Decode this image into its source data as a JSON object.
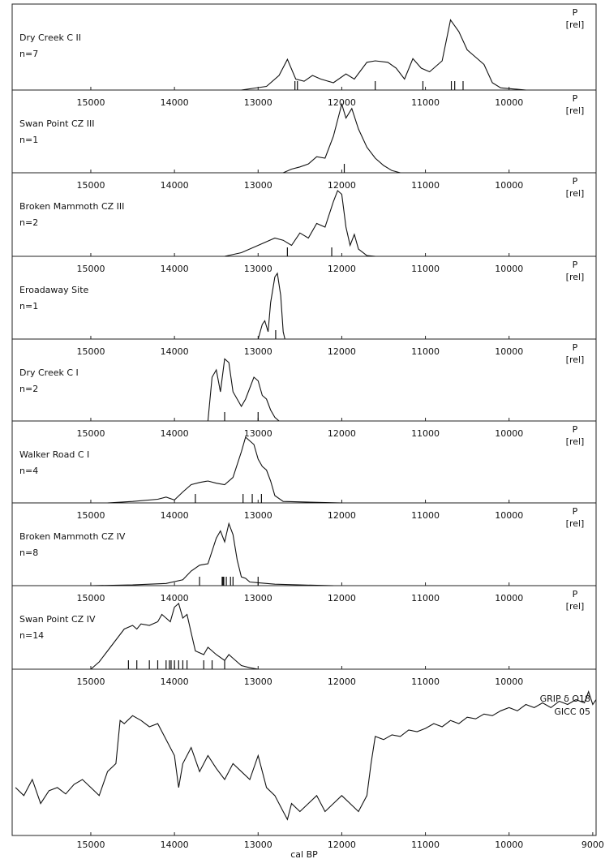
{
  "chart_data": [
    {
      "type": "line",
      "title": "Dry Creek C II",
      "subtitle": "n=7",
      "ylabel_lines": [
        "P",
        "[rel]"
      ],
      "x": [
        13200,
        12900,
        12750,
        12650,
        12550,
        12450,
        12350,
        12250,
        12100,
        11950,
        11850,
        11700,
        11600,
        11450,
        11350,
        11250,
        11150,
        11050,
        10950,
        10900,
        10800,
        10700,
        10600,
        10500,
        10400,
        10300,
        10200,
        10100,
        9900,
        9800
      ],
      "values": [
        0,
        0.05,
        0.2,
        0.42,
        0.15,
        0.12,
        0.2,
        0.15,
        0.1,
        0.22,
        0.15,
        0.38,
        0.4,
        0.38,
        0.3,
        0.15,
        0.43,
        0.3,
        0.25,
        0.3,
        0.4,
        0.96,
        0.8,
        0.55,
        0.45,
        0.35,
        0.1,
        0.03,
        0.01,
        0
      ],
      "dates": [
        12560,
        12530,
        11600,
        11030,
        10690,
        10650,
        10550
      ],
      "xlim": [
        15940,
        8960
      ],
      "ylim": [
        0,
        1
      ],
      "xticks": [
        15000,
        14000,
        13000,
        12000,
        11000,
        10000
      ]
    },
    {
      "type": "line",
      "title": "Swan Point CZ III",
      "subtitle": "n=1",
      "ylabel_lines": [
        "P",
        "[rel]"
      ],
      "x": [
        12700,
        12600,
        12500,
        12400,
        12300,
        12200,
        12100,
        12000,
        11950,
        11880,
        11800,
        11700,
        11600,
        11500,
        11400,
        11300
      ],
      "values": [
        0,
        0.05,
        0.08,
        0.12,
        0.22,
        0.2,
        0.5,
        0.94,
        0.75,
        0.88,
        0.6,
        0.35,
        0.2,
        0.1,
        0.03,
        0
      ],
      "dates": [
        11970
      ],
      "xlim": [
        15940,
        8960
      ],
      "ylim": [
        0,
        1
      ],
      "xticks": [
        15000,
        14000,
        13000,
        12000,
        11000,
        10000
      ]
    },
    {
      "type": "line",
      "title": "Broken Mammoth CZ III",
      "subtitle": "n=2",
      "ylabel_lines": [
        "P",
        "[rel]"
      ],
      "x": [
        13400,
        13200,
        13000,
        12800,
        12700,
        12600,
        12500,
        12400,
        12300,
        12200,
        12100,
        12050,
        12000,
        11950,
        11900,
        11850,
        11800,
        11700,
        11600
      ],
      "values": [
        0,
        0.05,
        0.15,
        0.25,
        0.22,
        0.15,
        0.32,
        0.25,
        0.45,
        0.4,
        0.75,
        0.9,
        0.85,
        0.4,
        0.15,
        0.3,
        0.1,
        0.01,
        0
      ],
      "dates": [
        12650,
        12120
      ],
      "xlim": [
        15940,
        8960
      ],
      "ylim": [
        0,
        1
      ],
      "xticks": [
        15000,
        14000,
        13000,
        12000,
        11000,
        10000
      ]
    },
    {
      "type": "line",
      "title": "Eroadaway Site",
      "subtitle": "n=1",
      "ylabel_lines": [
        "P",
        "[rel]"
      ],
      "x": [
        13000,
        12950,
        12920,
        12880,
        12850,
        12800,
        12770,
        12730,
        12700,
        12680
      ],
      "values": [
        0,
        0.2,
        0.25,
        0.1,
        0.5,
        0.85,
        0.9,
        0.6,
        0.1,
        0
      ],
      "dates": [
        12790
      ],
      "xlim": [
        15940,
        8960
      ],
      "ylim": [
        0,
        1
      ],
      "xticks": [
        15000,
        14000,
        13000,
        12000,
        11000,
        10000
      ]
    },
    {
      "type": "line",
      "title": "Dry Creek C I",
      "subtitle": "n=2",
      "ylabel_lines": [
        "P",
        "[rel]"
      ],
      "x": [
        13600,
        13550,
        13500,
        13450,
        13400,
        13350,
        13300,
        13200,
        13150,
        13050,
        13000,
        12950,
        12900,
        12850,
        12800,
        12750
      ],
      "values": [
        0,
        0.6,
        0.7,
        0.4,
        0.85,
        0.8,
        0.4,
        0.2,
        0.3,
        0.6,
        0.55,
        0.35,
        0.3,
        0.15,
        0.05,
        0
      ],
      "dates": [
        13400,
        13000
      ],
      "xlim": [
        15940,
        8960
      ],
      "ylim": [
        0,
        1
      ],
      "xticks": [
        15000,
        14000,
        13000,
        12000,
        11000,
        10000
      ]
    },
    {
      "type": "line",
      "title": "Walker Road C I",
      "subtitle": "n=4",
      "ylabel_lines": [
        "P",
        "[rel]"
      ],
      "x": [
        14800,
        14500,
        14200,
        14100,
        14000,
        13900,
        13800,
        13700,
        13600,
        13500,
        13400,
        13300,
        13200,
        13150,
        13050,
        13000,
        12950,
        12900,
        12850,
        12800,
        12700,
        12000
      ],
      "values": [
        0,
        0.02,
        0.05,
        0.08,
        0.04,
        0.15,
        0.25,
        0.28,
        0.3,
        0.27,
        0.25,
        0.35,
        0.7,
        0.9,
        0.8,
        0.6,
        0.5,
        0.45,
        0.3,
        0.1,
        0.02,
        0
      ],
      "dates": [
        13750,
        13180,
        13070,
        12960
      ],
      "xlim": [
        15940,
        8960
      ],
      "ylim": [
        0,
        1
      ],
      "xticks": [
        15000,
        14000,
        13000,
        12000,
        11000,
        10000
      ]
    },
    {
      "type": "line",
      "title": "Broken Mammoth  CZ IV",
      "subtitle": "n=8",
      "ylabel_lines": [
        "P",
        "[rel]"
      ],
      "x": [
        15000,
        14500,
        14100,
        13900,
        13800,
        13700,
        13600,
        13500,
        13450,
        13400,
        13350,
        13300,
        13250,
        13200,
        13150,
        13100,
        13000,
        12900,
        12800,
        12500,
        12100
      ],
      "values": [
        0,
        0.01,
        0.03,
        0.08,
        0.2,
        0.28,
        0.3,
        0.65,
        0.75,
        0.6,
        0.85,
        0.7,
        0.35,
        0.12,
        0.1,
        0.05,
        0.04,
        0.03,
        0.02,
        0.01,
        0
      ],
      "dates": [
        13700,
        13430,
        13420,
        13410,
        13380,
        13330,
        13300,
        13000
      ],
      "xlim": [
        15940,
        8960
      ],
      "ylim": [
        0,
        1
      ],
      "xticks": [
        15000,
        14000,
        13000,
        12000,
        11000,
        10000
      ]
    },
    {
      "type": "line",
      "title": "Swan Point CZ IV",
      "subtitle": "n=14",
      "ylabel_lines": [
        "P",
        "[rel]"
      ],
      "x": [
        15000,
        14900,
        14800,
        14700,
        14600,
        14500,
        14450,
        14400,
        14300,
        14200,
        14150,
        14100,
        14050,
        14000,
        13950,
        13900,
        13850,
        13800,
        13750,
        13650,
        13600,
        13500,
        13400,
        13350,
        13300,
        13200,
        13100,
        13000
      ],
      "values": [
        0,
        0.1,
        0.25,
        0.4,
        0.55,
        0.6,
        0.55,
        0.62,
        0.6,
        0.65,
        0.75,
        0.7,
        0.65,
        0.85,
        0.9,
        0.7,
        0.75,
        0.5,
        0.25,
        0.2,
        0.3,
        0.2,
        0.12,
        0.2,
        0.15,
        0.05,
        0.02,
        0
      ],
      "dates": [
        14550,
        14450,
        14300,
        14200,
        14100,
        14060,
        14040,
        14000,
        13950,
        13900,
        13850,
        13650,
        13550,
        13400
      ],
      "xlim": [
        15940,
        8960
      ],
      "ylim": [
        0,
        1
      ],
      "xticks": [
        15000,
        14000,
        13000,
        12000,
        11000,
        10000
      ]
    },
    {
      "type": "line",
      "title": "GRIP δ O18",
      "subtitle": "GICC 05",
      "xlabel": "cal BP",
      "x": [
        15900,
        15800,
        15700,
        15600,
        15500,
        15400,
        15300,
        15200,
        15100,
        15000,
        14900,
        14800,
        14700,
        14650,
        14600,
        14500,
        14400,
        14300,
        14200,
        14100,
        14000,
        13950,
        13900,
        13800,
        13700,
        13600,
        13500,
        13400,
        13300,
        13200,
        13100,
        13000,
        12900,
        12800,
        12700,
        12650,
        12600,
        12500,
        12400,
        12300,
        12200,
        12100,
        12000,
        11900,
        11800,
        11700,
        11650,
        11600,
        11500,
        11400,
        11300,
        11200,
        11100,
        11000,
        10900,
        10800,
        10700,
        10600,
        10500,
        10400,
        10300,
        10200,
        10100,
        10000,
        9900,
        9800,
        9700,
        9600,
        9500,
        9400,
        9300,
        9200,
        9100,
        9050,
        9000,
        8960
      ],
      "values": [
        0.3,
        0.25,
        0.35,
        0.2,
        0.28,
        0.3,
        0.26,
        0.32,
        0.35,
        0.3,
        0.25,
        0.4,
        0.45,
        0.72,
        0.7,
        0.75,
        0.72,
        0.68,
        0.7,
        0.6,
        0.5,
        0.3,
        0.45,
        0.55,
        0.4,
        0.5,
        0.42,
        0.35,
        0.45,
        0.4,
        0.35,
        0.5,
        0.3,
        0.25,
        0.15,
        0.1,
        0.2,
        0.15,
        0.2,
        0.25,
        0.15,
        0.2,
        0.25,
        0.2,
        0.15,
        0.25,
        0.45,
        0.62,
        0.6,
        0.63,
        0.62,
        0.66,
        0.65,
        0.67,
        0.7,
        0.68,
        0.72,
        0.7,
        0.74,
        0.73,
        0.76,
        0.75,
        0.78,
        0.8,
        0.78,
        0.82,
        0.8,
        0.83,
        0.8,
        0.84,
        0.82,
        0.85,
        0.83,
        0.9,
        0.82,
        0.85
      ],
      "xlim": [
        15940,
        8960
      ],
      "ylim": [
        0,
        1
      ],
      "xticks": [
        15000,
        14000,
        13000,
        12000,
        11000,
        10000,
        9000
      ]
    }
  ]
}
